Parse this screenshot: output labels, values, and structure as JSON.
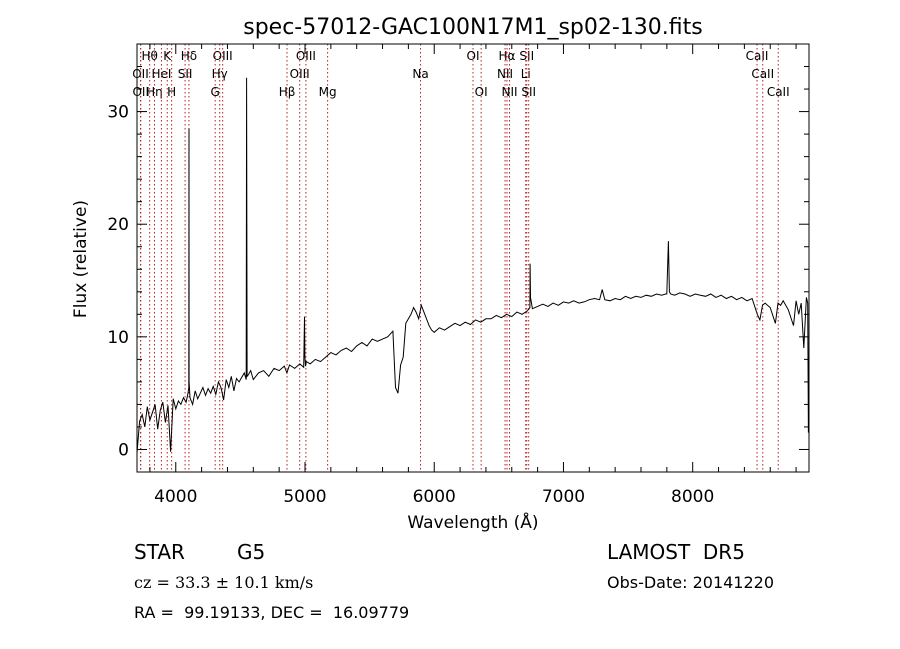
{
  "chart_data": {
    "type": "line",
    "title": "spec-57012-GAC100N17M1_sp02-130.fits",
    "xlabel": "Wavelength (Å)",
    "ylabel": "Flux (relative)",
    "xlim": [
      3700,
      8900
    ],
    "ylim": [
      -2,
      36
    ],
    "xticks": [
      4000,
      5000,
      6000,
      7000,
      8000
    ],
    "yticks": [
      0,
      10,
      20,
      30
    ],
    "grid": false,
    "series": [
      {
        "x": [
          3700,
          3720,
          3740,
          3760,
          3780,
          3800,
          3820,
          3840,
          3860,
          3880,
          3900,
          3920,
          3940,
          3960,
          3980,
          4000,
          4020,
          4040,
          4060,
          4080,
          4095,
          4101,
          4102,
          4103,
          4110,
          4130,
          4150,
          4170,
          4190,
          4210,
          4230,
          4250,
          4270,
          4290,
          4310,
          4330,
          4350,
          4370,
          4390,
          4410,
          4430,
          4450,
          4470,
          4490,
          4510,
          4530,
          4545,
          4548,
          4552,
          4560,
          4580,
          4600,
          4640,
          4680,
          4720,
          4760,
          4800,
          4840,
          4860,
          4880,
          4920,
          4960,
          4990,
          4996,
          4999,
          5004,
          5010,
          5040,
          5080,
          5120,
          5160,
          5200,
          5240,
          5280,
          5320,
          5360,
          5400,
          5440,
          5480,
          5520,
          5560,
          5600,
          5640,
          5680,
          5700,
          5720,
          5740,
          5760,
          5780,
          5800,
          5820,
          5840,
          5860,
          5880,
          5900,
          5920,
          5940,
          5960,
          5980,
          6000,
          6040,
          6080,
          6120,
          6160,
          6200,
          6240,
          6280,
          6320,
          6360,
          6400,
          6440,
          6480,
          6520,
          6560,
          6600,
          6640,
          6680,
          6720,
          6740,
          6742,
          6745,
          6760,
          6800,
          6840,
          6880,
          6920,
          6960,
          7000,
          7040,
          7080,
          7120,
          7160,
          7200,
          7240,
          7280,
          7300,
          7320,
          7360,
          7400,
          7440,
          7480,
          7520,
          7560,
          7600,
          7640,
          7680,
          7720,
          7760,
          7790,
          7800,
          7812,
          7820,
          7830,
          7860,
          7900,
          7940,
          7980,
          8020,
          8060,
          8100,
          8140,
          8180,
          8220,
          8260,
          8300,
          8340,
          8380,
          8420,
          8460,
          8500,
          8520,
          8540,
          8560,
          8600,
          8640,
          8660,
          8680,
          8700,
          8740,
          8780,
          8800,
          8820,
          8840,
          8860,
          8880,
          8890,
          8895
        ],
        "y": [
          -0.3,
          2.5,
          3.1,
          2.0,
          3.8,
          2.6,
          3.3,
          4.0,
          1.8,
          3.5,
          4.2,
          2.4,
          3.9,
          -0.2,
          4.5,
          3.6,
          4.3,
          4.0,
          4.6,
          4.2,
          5.0,
          5.5,
          28.5,
          6.0,
          4.6,
          4.0,
          5.2,
          4.5,
          5.0,
          5.5,
          4.8,
          5.4,
          5.0,
          5.6,
          4.9,
          6.0,
          5.5,
          4.4,
          6.2,
          5.5,
          6.5,
          5.2,
          6.3,
          6.0,
          6.4,
          6.8,
          6.2,
          33.0,
          6.5,
          6.6,
          7.0,
          6.2,
          6.8,
          7.0,
          6.5,
          7.2,
          7.0,
          7.4,
          6.8,
          7.5,
          7.2,
          7.6,
          7.3,
          11.8,
          8.2,
          7.4,
          7.8,
          7.6,
          8.0,
          7.8,
          8.2,
          8.6,
          8.4,
          8.8,
          9.0,
          8.7,
          9.2,
          9.5,
          9.2,
          9.8,
          9.6,
          9.8,
          10.0,
          10.5,
          5.5,
          5.0,
          7.5,
          8.2,
          11.2,
          11.6,
          12.0,
          12.6,
          12.2,
          11.6,
          12.8,
          12.2,
          11.6,
          11.0,
          10.6,
          10.4,
          10.8,
          10.6,
          10.9,
          11.2,
          11.0,
          11.3,
          11.1,
          11.5,
          11.3,
          11.6,
          11.6,
          11.9,
          11.7,
          12.0,
          11.8,
          12.2,
          12.0,
          12.3,
          12.6,
          16.5,
          13.5,
          12.5,
          12.7,
          12.9,
          12.7,
          13.0,
          12.8,
          13.1,
          13.0,
          13.2,
          13.0,
          13.1,
          13.3,
          13.4,
          13.3,
          14.2,
          13.3,
          13.2,
          13.4,
          13.3,
          13.6,
          13.4,
          13.6,
          13.5,
          13.7,
          13.6,
          13.8,
          13.7,
          13.8,
          13.8,
          18.5,
          14.0,
          13.8,
          13.7,
          13.9,
          13.8,
          13.6,
          13.8,
          13.7,
          13.6,
          13.8,
          13.5,
          13.7,
          13.4,
          13.6,
          13.3,
          13.5,
          13.2,
          13.4,
          12.0,
          11.5,
          12.8,
          13.0,
          12.6,
          11.2,
          13.0,
          12.8,
          13.2,
          12.4,
          11.0,
          13.2,
          12.0,
          13.0,
          9.0,
          13.5,
          13.0,
          1.5
        ]
      }
    ],
    "spectral_lines": [
      {
        "name": "Hθ",
        "wl": 3798,
        "row": 0
      },
      {
        "name": "OII",
        "wl": 3727,
        "row": 1
      },
      {
        "name": "OII",
        "wl": 3729,
        "row": 2
      },
      {
        "name": "Hη",
        "wl": 3835,
        "row": 2
      },
      {
        "name": "HeI",
        "wl": 3889,
        "row": 1
      },
      {
        "name": "K",
        "wl": 3934,
        "row": 0
      },
      {
        "name": "H",
        "wl": 3968,
        "row": 2
      },
      {
        "name": "Hδ",
        "wl": 4102,
        "row": 0
      },
      {
        "name": "SII",
        "wl": 4072,
        "row": 1
      },
      {
        "name": "OIII",
        "wl": 4363,
        "row": 0
      },
      {
        "name": "Hγ",
        "wl": 4340,
        "row": 1
      },
      {
        "name": "G",
        "wl": 4305,
        "row": 2
      },
      {
        "name": "Hβ",
        "wl": 4861,
        "row": 2
      },
      {
        "name": "OIII",
        "wl": 5007,
        "row": 0
      },
      {
        "name": "OIII",
        "wl": 4959,
        "row": 1
      },
      {
        "name": "Mg",
        "wl": 5175,
        "row": 2
      },
      {
        "name": "Na",
        "wl": 5894,
        "row": 1
      },
      {
        "name": "OI",
        "wl": 6300,
        "row": 0
      },
      {
        "name": "OI",
        "wl": 6363,
        "row": 2
      },
      {
        "name": "Hα",
        "wl": 6563,
        "row": 0
      },
      {
        "name": "NII",
        "wl": 6548,
        "row": 1
      },
      {
        "name": "NII",
        "wl": 6583,
        "row": 2
      },
      {
        "name": "SII",
        "wl": 6716,
        "row": 0
      },
      {
        "name": "Li",
        "wl": 6708,
        "row": 1
      },
      {
        "name": "SII",
        "wl": 6731,
        "row": 2
      },
      {
        "name": "CaII",
        "wl": 8498,
        "row": 0
      },
      {
        "name": "CaII",
        "wl": 8542,
        "row": 1
      },
      {
        "name": "CaII",
        "wl": 8662,
        "row": 2
      }
    ]
  },
  "footer": {
    "object_type": "STAR",
    "subclass": "G5",
    "survey": "LAMOST  DR5",
    "cz": "cz = 33.3 ± 10.1 km/s",
    "obs_date": "Obs-Date: 20141220",
    "coords": "RA =  99.19133, DEC =  16.09779"
  }
}
